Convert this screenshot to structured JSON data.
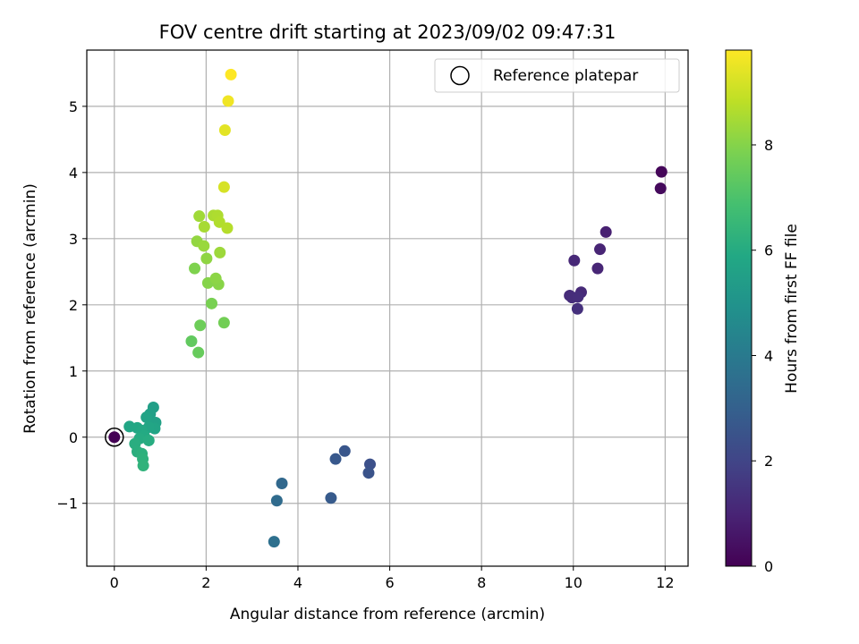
{
  "chart_data": {
    "type": "scatter",
    "title": "FOV centre drift starting at 2023/09/02 09:47:31",
    "xlabel": "Angular distance from reference (arcmin)",
    "ylabel": "Rotation from reference (arcmin)",
    "xlim": [
      -0.6,
      12.5
    ],
    "ylim": [
      -1.95,
      5.85
    ],
    "xticks": [
      0,
      2,
      4,
      6,
      8,
      10,
      12
    ],
    "yticks": [
      -1,
      0,
      1,
      2,
      3,
      4,
      5
    ],
    "grid": true,
    "colormap": "viridis",
    "colorbar": {
      "label": "Hours from first FF file",
      "range": [
        0,
        9.8
      ],
      "ticks": [
        0,
        2,
        4,
        6,
        8
      ]
    },
    "legend": {
      "position": "top-right",
      "entries": [
        {
          "label": "Reference platepar",
          "marker": "open-circle"
        }
      ]
    },
    "reference_point": {
      "x": 0,
      "y": 0
    },
    "points": [
      {
        "x": 0.0,
        "y": 0.0,
        "h": 0.0
      },
      {
        "x": 11.92,
        "y": 4.01,
        "h": 0.15
      },
      {
        "x": 11.9,
        "y": 3.76,
        "h": 0.25
      },
      {
        "x": 10.71,
        "y": 3.1,
        "h": 0.9
      },
      {
        "x": 10.58,
        "y": 2.84,
        "h": 1.0
      },
      {
        "x": 10.53,
        "y": 2.55,
        "h": 1.05
      },
      {
        "x": 10.02,
        "y": 2.67,
        "h": 1.1
      },
      {
        "x": 10.17,
        "y": 2.19,
        "h": 1.15
      },
      {
        "x": 9.92,
        "y": 2.14,
        "h": 1.2
      },
      {
        "x": 9.97,
        "y": 2.11,
        "h": 1.25
      },
      {
        "x": 10.1,
        "y": 2.12,
        "h": 1.3
      },
      {
        "x": 10.09,
        "y": 1.94,
        "h": 1.35
      },
      {
        "x": 5.57,
        "y": -0.41,
        "h": 2.4
      },
      {
        "x": 5.54,
        "y": -0.54,
        "h": 2.5
      },
      {
        "x": 5.02,
        "y": -0.21,
        "h": 2.6
      },
      {
        "x": 4.82,
        "y": -0.33,
        "h": 2.7
      },
      {
        "x": 4.72,
        "y": -0.92,
        "h": 2.8
      },
      {
        "x": 3.65,
        "y": -0.7,
        "h": 3.3
      },
      {
        "x": 3.54,
        "y": -0.96,
        "h": 3.4
      },
      {
        "x": 3.48,
        "y": -1.58,
        "h": 3.6
      },
      {
        "x": 0.85,
        "y": 0.45,
        "h": 5.5
      },
      {
        "x": 0.78,
        "y": 0.35,
        "h": 5.55
      },
      {
        "x": 0.9,
        "y": 0.22,
        "h": 5.6
      },
      {
        "x": 0.7,
        "y": 0.3,
        "h": 5.65
      },
      {
        "x": 0.88,
        "y": 0.13,
        "h": 5.7
      },
      {
        "x": 0.75,
        "y": 0.15,
        "h": 5.75
      },
      {
        "x": 0.33,
        "y": 0.16,
        "h": 5.8
      },
      {
        "x": 0.5,
        "y": 0.14,
        "h": 5.85
      },
      {
        "x": 0.6,
        "y": 0.1,
        "h": 5.9
      },
      {
        "x": 0.65,
        "y": 0.02,
        "h": 5.95
      },
      {
        "x": 0.55,
        "y": -0.02,
        "h": 6.0
      },
      {
        "x": 0.75,
        "y": -0.05,
        "h": 6.05
      },
      {
        "x": 0.45,
        "y": -0.1,
        "h": 6.1
      },
      {
        "x": 0.5,
        "y": -0.22,
        "h": 6.15
      },
      {
        "x": 0.6,
        "y": -0.25,
        "h": 6.2
      },
      {
        "x": 0.62,
        "y": -0.33,
        "h": 6.25
      },
      {
        "x": 0.63,
        "y": -0.43,
        "h": 6.3
      },
      {
        "x": 1.68,
        "y": 1.45,
        "h": 7.4
      },
      {
        "x": 1.83,
        "y": 1.28,
        "h": 7.5
      },
      {
        "x": 1.87,
        "y": 1.69,
        "h": 7.6
      },
      {
        "x": 2.39,
        "y": 1.73,
        "h": 7.7
      },
      {
        "x": 2.12,
        "y": 2.02,
        "h": 7.8
      },
      {
        "x": 1.75,
        "y": 2.55,
        "h": 7.9
      },
      {
        "x": 2.04,
        "y": 2.33,
        "h": 8.0
      },
      {
        "x": 2.27,
        "y": 2.31,
        "h": 8.05
      },
      {
        "x": 2.21,
        "y": 2.4,
        "h": 8.1
      },
      {
        "x": 2.01,
        "y": 2.7,
        "h": 8.15
      },
      {
        "x": 1.8,
        "y": 2.96,
        "h": 8.2
      },
      {
        "x": 1.95,
        "y": 2.89,
        "h": 8.3
      },
      {
        "x": 2.3,
        "y": 2.79,
        "h": 8.35
      },
      {
        "x": 1.85,
        "y": 3.34,
        "h": 8.4
      },
      {
        "x": 1.96,
        "y": 3.18,
        "h": 8.5
      },
      {
        "x": 2.16,
        "y": 3.35,
        "h": 8.55
      },
      {
        "x": 2.25,
        "y": 3.35,
        "h": 8.6
      },
      {
        "x": 2.29,
        "y": 3.25,
        "h": 8.65
      },
      {
        "x": 2.46,
        "y": 3.16,
        "h": 8.7
      },
      {
        "x": 2.39,
        "y": 3.78,
        "h": 9.2
      },
      {
        "x": 2.41,
        "y": 4.64,
        "h": 9.4
      },
      {
        "x": 2.48,
        "y": 5.08,
        "h": 9.6
      },
      {
        "x": 2.54,
        "y": 5.48,
        "h": 9.8
      }
    ]
  }
}
